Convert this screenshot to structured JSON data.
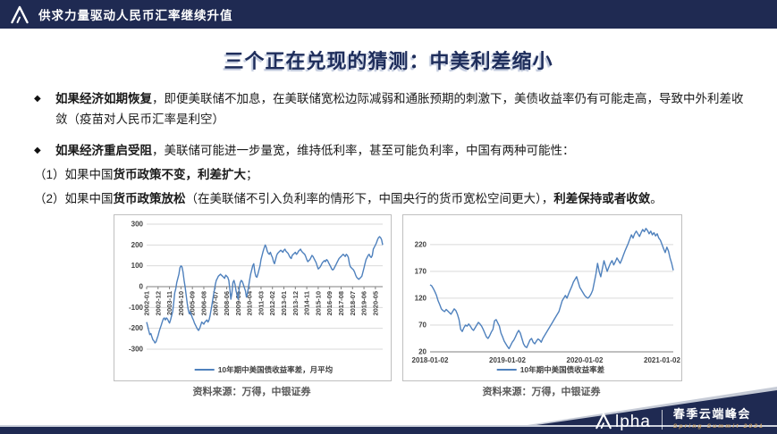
{
  "header": {
    "title": "供求力量驱动人民币汇率继续升值",
    "logo_icon": "alpha-triangle-icon"
  },
  "slide": {
    "title": "三个正在兑现的猜测：中美利差缩小",
    "bullet_marker": "◆",
    "bullets": [
      {
        "bold": "如果经济如期恢复",
        "rest": "，即便美联储不加息，在美联储宽松边际减弱和通胀预期的刺激下，美债收益率仍有可能走高，导致中外利差收敛（疫苗对人民币汇率是利空）"
      },
      {
        "bold": "如果经济重启受阻",
        "rest": "，美联储可能进一步量宽，维持低利率，甚至可能负利率，中国有两种可能性："
      }
    ],
    "subitems": [
      {
        "prefix": "（1）如果中国",
        "bold1": "货币政策不变，利差扩大",
        "mid": "",
        "bold2": "",
        "suffix": "；"
      },
      {
        "prefix": "（2）如果中国",
        "bold1": "货币政策放松",
        "mid": "（在美联储不引入负利率的情形下，中国央行的货币宽松空间更大），",
        "bold2": "利差保持或者收敛",
        "suffix": "。"
      }
    ]
  },
  "captions": {
    "left": "资料来源：万得，中银证券",
    "right": "资料来源：万得，中银证券"
  },
  "footer": {
    "brand_lpha": "lpha",
    "brand_cn": "春季云端峰会",
    "brand_en": "Spring Summit 2021"
  },
  "colors": {
    "navy": "#1f2a52",
    "line": "#4f81bd",
    "grid": "#d9d9d9",
    "axis": "#7f7f7f",
    "tick_text": "#404040",
    "gold": "#c59a5b"
  },
  "chart_data": [
    {
      "type": "line",
      "legend": "10年期中美国债收益率差，月平均",
      "ylim": [
        -300,
        300
      ],
      "yticks": [
        300,
        200,
        100,
        0,
        -100,
        -200,
        -300
      ],
      "axis_at": 0,
      "x_label_rotation": -90,
      "xtick_interval_points": 11,
      "xtick_labels": [
        "2002-01",
        "2002-12",
        "2003-11",
        "2004-10",
        "2005-09",
        "2006-08",
        "2007-07",
        "2008-06",
        "2009-05",
        "2010-04",
        "2011-03",
        "2012-02",
        "2013-01",
        "2013-12",
        "2014-11",
        "2015-10",
        "2016-09",
        "2017-08",
        "2018-07",
        "2019-06",
        "2020-05"
      ],
      "line_color": "#4f81bd",
      "values": [
        -170,
        -190,
        -210,
        -230,
        -225,
        -240,
        -255,
        -260,
        -270,
        -265,
        -250,
        -235,
        -215,
        -200,
        -185,
        -170,
        -155,
        -150,
        -160,
        -150,
        -155,
        -165,
        -175,
        -160,
        -140,
        -120,
        -80,
        -30,
        -10,
        20,
        40,
        60,
        90,
        100,
        95,
        70,
        30,
        0,
        -40,
        -80,
        -110,
        -130,
        -120,
        -135,
        -150,
        -160,
        -175,
        -185,
        -195,
        -205,
        -210,
        -200,
        -185,
        -170,
        -175,
        -180,
        -170,
        -165,
        -160,
        -170,
        -160,
        -140,
        -110,
        -80,
        -50,
        -20,
        10,
        30,
        40,
        50,
        55,
        60,
        55,
        50,
        45,
        40,
        55,
        50,
        45,
        30,
        -10,
        -60,
        -30,
        20,
        30,
        10,
        -20,
        -40,
        -60,
        -10,
        20,
        30,
        25,
        10,
        -5,
        -20,
        -50,
        -30,
        0,
        30,
        60,
        80,
        100,
        110,
        70,
        50,
        45,
        60,
        80,
        100,
        130,
        150,
        170,
        185,
        200,
        190,
        170,
        160,
        155,
        165,
        150,
        140,
        120,
        110,
        130,
        150,
        160,
        165,
        170,
        175,
        170,
        165,
        175,
        180,
        170,
        165,
        160,
        150,
        140,
        135,
        150,
        155,
        160,
        165,
        155,
        160,
        170,
        175,
        180,
        170,
        165,
        160,
        155,
        145,
        130,
        120,
        125,
        130,
        140,
        150,
        145,
        135,
        125,
        115,
        100,
        85,
        90,
        95,
        105,
        115,
        120,
        125,
        120,
        130,
        125,
        115,
        105,
        95,
        85,
        80,
        85,
        95,
        105,
        115,
        125,
        135,
        140,
        145,
        150,
        155,
        150,
        145,
        155,
        150,
        140,
        110,
        95,
        90,
        85,
        80,
        70,
        55,
        45,
        40,
        35,
        40,
        45,
        50,
        70,
        90,
        110,
        130,
        140,
        150,
        155,
        145,
        140,
        150,
        180,
        190,
        200,
        210,
        225,
        235,
        240,
        235,
        225,
        200
      ]
    },
    {
      "type": "line",
      "legend": "10年期中美国债收益率差",
      "ylim": [
        20,
        258
      ],
      "yticks": [
        220,
        170,
        120,
        70,
        20
      ],
      "axis_at": 20,
      "x_label_rotation": 0,
      "xtick_positions": [
        0,
        0.318,
        0.636,
        0.954
      ],
      "xtick_labels": [
        "2018-01-02",
        "2019-01-02",
        "2020-01-02",
        "2021-01-02"
      ],
      "line_color": "#4f81bd",
      "values": [
        145,
        143,
        138,
        132,
        125,
        115,
        108,
        100,
        97,
        95,
        99,
        96,
        93,
        90,
        95,
        100,
        97,
        90,
        80,
        62,
        58,
        65,
        70,
        68,
        72,
        68,
        63,
        60,
        65,
        70,
        75,
        72,
        68,
        62,
        55,
        48,
        45,
        50,
        57,
        62,
        78,
        80,
        74,
        68,
        55,
        48,
        40,
        35,
        30,
        26,
        32,
        38,
        42,
        48,
        55,
        60,
        55,
        45,
        35,
        30,
        28,
        35,
        42,
        45,
        38,
        35,
        40,
        44,
        42,
        38,
        45,
        50,
        55,
        60,
        65,
        70,
        75,
        80,
        85,
        90,
        95,
        105,
        115,
        120,
        125,
        120,
        128,
        135,
        142,
        150,
        155,
        160,
        150,
        140,
        135,
        130,
        125,
        122,
        120,
        123,
        128,
        135,
        150,
        165,
        185,
        170,
        160,
        175,
        190,
        180,
        170,
        178,
        185,
        190,
        182,
        188,
        195,
        190,
        185,
        192,
        200,
        208,
        215,
        222,
        230,
        238,
        232,
        240,
        245,
        240,
        235,
        242,
        248,
        244,
        250,
        246,
        240,
        245,
        238,
        242,
        236,
        240,
        232,
        228,
        220,
        212,
        205,
        215,
        208,
        195,
        185,
        172
      ]
    }
  ]
}
